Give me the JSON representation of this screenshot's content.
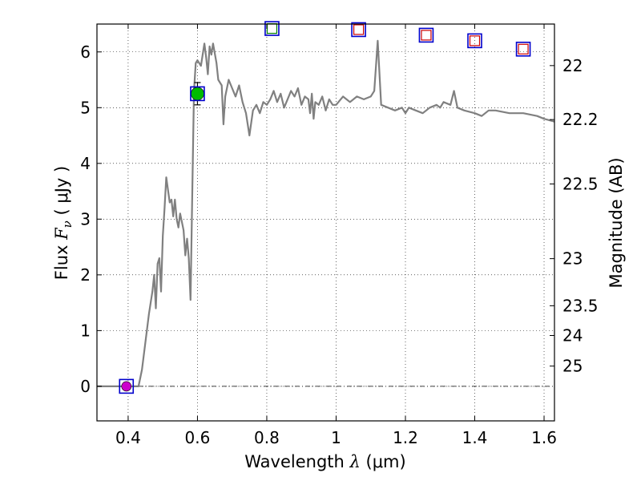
{
  "chart_data": {
    "type": "line",
    "xlabel": "Wavelength  λ (μm)",
    "xlabel_text": "Wavelength  ",
    "xlabel_symbol": "λ",
    "xlabel_unit": " (μm)",
    "ylabel_text": "Flux  ",
    "ylabel_symbol": "F",
    "ylabel_sub": "ν",
    "ylabel_unit": "  ( μJy )",
    "y2label": "Magnitude (AB)",
    "xlim": [
      0.31,
      1.63
    ],
    "ylim": [
      -0.62,
      6.5
    ],
    "grid": true,
    "x_ticks": [
      0.4,
      0.6,
      0.8,
      1.0,
      1.2,
      1.4,
      1.6
    ],
    "x_tick_labels": [
      "0.4",
      "0.6",
      "0.8",
      "1",
      "1.2",
      "1.4",
      "1.6"
    ],
    "y_ticks": [
      0,
      1,
      2,
      3,
      4,
      5,
      6
    ],
    "y_tick_labels": [
      "0",
      "1",
      "2",
      "3",
      "4",
      "5",
      "6"
    ],
    "mag_ticks": [
      22,
      22.2,
      22.5,
      23,
      23.5,
      24,
      25
    ],
    "mag_tick_labels": [
      "22",
      "22.2",
      "22.5",
      "23",
      "23.5",
      "24",
      "25"
    ],
    "zero_line": 0,
    "colors": {
      "model": "#808080",
      "photometry_outer": "#0000cc",
      "photometry_inner_red": "#cc0000",
      "photometry_inner_green": "#008000",
      "detection_green": "#00bb00",
      "detection_magenta": "#cc00cc"
    },
    "model_spectrum": [
      [
        0.31,
        0.0
      ],
      [
        0.43,
        0.0
      ],
      [
        0.44,
        0.3
      ],
      [
        0.46,
        1.3
      ],
      [
        0.47,
        1.7
      ],
      [
        0.475,
        2.0
      ],
      [
        0.48,
        1.4
      ],
      [
        0.485,
        2.2
      ],
      [
        0.49,
        2.3
      ],
      [
        0.495,
        1.7
      ],
      [
        0.5,
        2.7
      ],
      [
        0.505,
        3.2
      ],
      [
        0.51,
        3.75
      ],
      [
        0.52,
        3.3
      ],
      [
        0.525,
        3.35
      ],
      [
        0.53,
        3.05
      ],
      [
        0.535,
        3.35
      ],
      [
        0.54,
        3.0
      ],
      [
        0.545,
        2.85
      ],
      [
        0.55,
        3.1
      ],
      [
        0.555,
        2.95
      ],
      [
        0.56,
        2.8
      ],
      [
        0.565,
        2.35
      ],
      [
        0.57,
        2.65
      ],
      [
        0.575,
        2.3
      ],
      [
        0.58,
        1.55
      ],
      [
        0.585,
        3.5
      ],
      [
        0.59,
        5.3
      ],
      [
        0.595,
        5.8
      ],
      [
        0.6,
        5.85
      ],
      [
        0.61,
        5.75
      ],
      [
        0.62,
        6.15
      ],
      [
        0.625,
        5.9
      ],
      [
        0.63,
        5.6
      ],
      [
        0.635,
        6.1
      ],
      [
        0.64,
        5.95
      ],
      [
        0.645,
        6.15
      ],
      [
        0.655,
        5.8
      ],
      [
        0.66,
        5.5
      ],
      [
        0.67,
        5.4
      ],
      [
        0.675,
        4.7
      ],
      [
        0.68,
        5.2
      ],
      [
        0.69,
        5.5
      ],
      [
        0.7,
        5.35
      ],
      [
        0.71,
        5.2
      ],
      [
        0.72,
        5.4
      ],
      [
        0.73,
        5.1
      ],
      [
        0.74,
        4.9
      ],
      [
        0.75,
        4.5
      ],
      [
        0.76,
        4.95
      ],
      [
        0.77,
        5.05
      ],
      [
        0.78,
        4.9
      ],
      [
        0.79,
        5.1
      ],
      [
        0.8,
        5.05
      ],
      [
        0.81,
        5.15
      ],
      [
        0.82,
        5.3
      ],
      [
        0.83,
        5.1
      ],
      [
        0.84,
        5.25
      ],
      [
        0.85,
        5.0
      ],
      [
        0.86,
        5.15
      ],
      [
        0.87,
        5.3
      ],
      [
        0.88,
        5.2
      ],
      [
        0.89,
        5.35
      ],
      [
        0.9,
        5.05
      ],
      [
        0.91,
        5.2
      ],
      [
        0.92,
        5.15
      ],
      [
        0.925,
        4.9
      ],
      [
        0.93,
        5.25
      ],
      [
        0.935,
        4.8
      ],
      [
        0.94,
        5.1
      ],
      [
        0.95,
        5.05
      ],
      [
        0.96,
        5.2
      ],
      [
        0.97,
        4.95
      ],
      [
        0.98,
        5.15
      ],
      [
        0.99,
        5.05
      ],
      [
        1.0,
        5.05
      ],
      [
        1.02,
        5.2
      ],
      [
        1.04,
        5.1
      ],
      [
        1.06,
        5.2
      ],
      [
        1.08,
        5.15
      ],
      [
        1.1,
        5.2
      ],
      [
        1.11,
        5.3
      ],
      [
        1.12,
        6.2
      ],
      [
        1.13,
        5.05
      ],
      [
        1.15,
        5.0
      ],
      [
        1.17,
        4.95
      ],
      [
        1.19,
        5.0
      ],
      [
        1.2,
        4.9
      ],
      [
        1.21,
        5.0
      ],
      [
        1.23,
        4.95
      ],
      [
        1.25,
        4.9
      ],
      [
        1.27,
        5.0
      ],
      [
        1.29,
        5.05
      ],
      [
        1.3,
        5.0
      ],
      [
        1.31,
        5.1
      ],
      [
        1.33,
        5.05
      ],
      [
        1.34,
        5.3
      ],
      [
        1.35,
        5.0
      ],
      [
        1.37,
        4.95
      ],
      [
        1.4,
        4.9
      ],
      [
        1.42,
        4.85
      ],
      [
        1.44,
        4.95
      ],
      [
        1.46,
        4.95
      ],
      [
        1.5,
        4.9
      ],
      [
        1.54,
        4.9
      ],
      [
        1.58,
        4.85
      ],
      [
        1.6,
        4.8
      ],
      [
        1.63,
        4.75
      ]
    ],
    "photometry_boxes": [
      {
        "x": 0.395,
        "y": 0.0,
        "inner": "magenta-dot"
      },
      {
        "x": 0.6,
        "y": 5.25,
        "inner": "green-dot"
      },
      {
        "x": 0.815,
        "y": 6.42,
        "inner": "green-square"
      },
      {
        "x": 1.065,
        "y": 6.4,
        "inner": "red-square"
      },
      {
        "x": 1.26,
        "y": 6.3,
        "inner": "red-square"
      },
      {
        "x": 1.4,
        "y": 6.2,
        "inner": "red-square"
      },
      {
        "x": 1.54,
        "y": 6.05,
        "inner": "red-square"
      }
    ],
    "error_bar": {
      "x": 0.6,
      "y": 5.25,
      "low": 5.05,
      "high": 5.45
    }
  }
}
